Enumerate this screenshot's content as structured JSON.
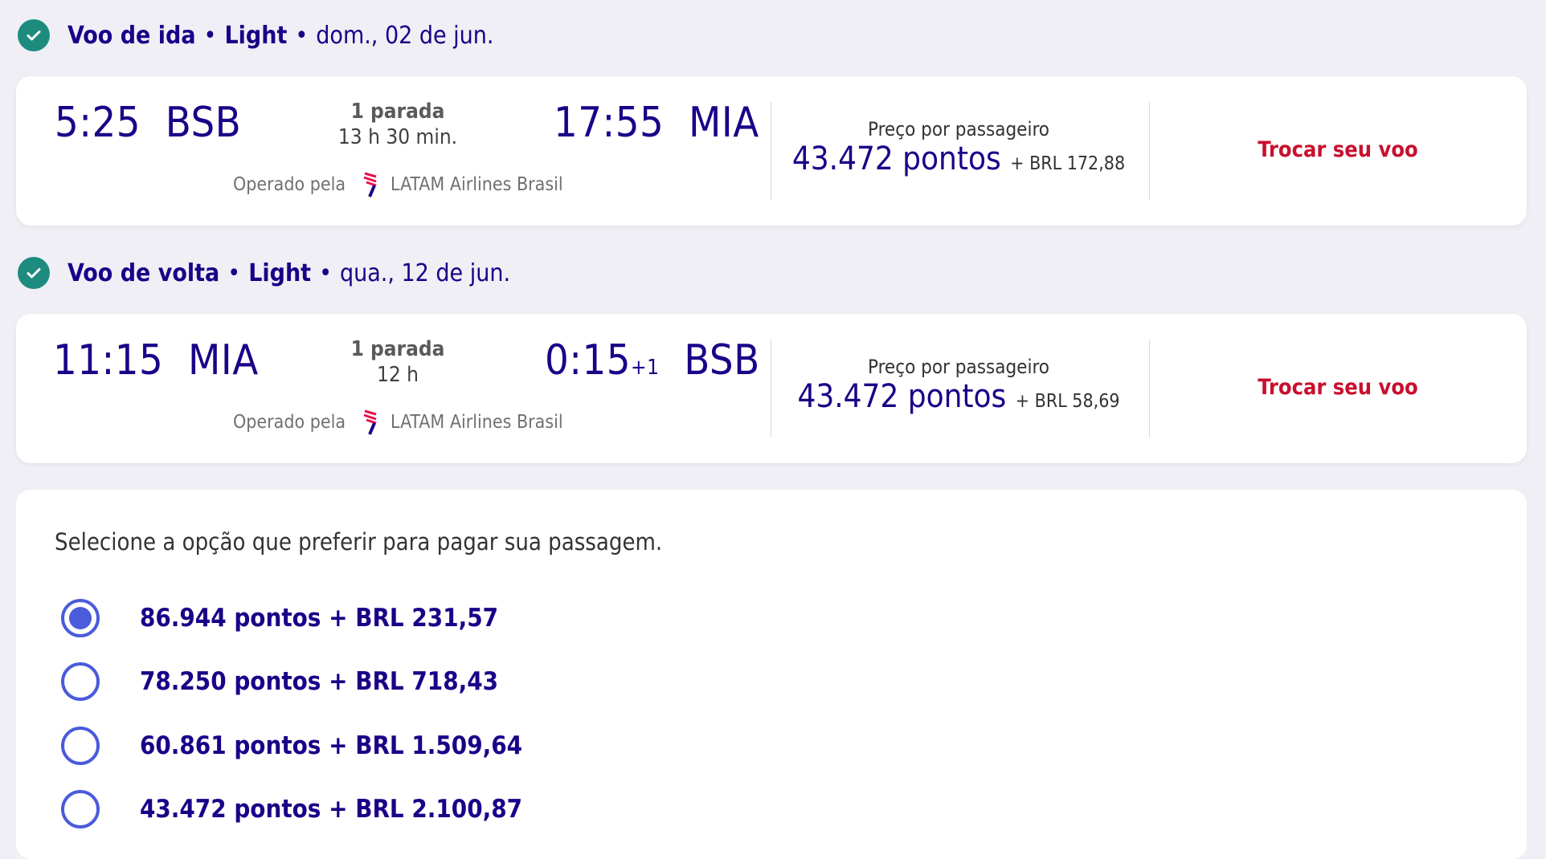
{
  "colors": {
    "navy": "#1b0088",
    "accent_red": "#c8102e",
    "check_green": "#1d8c7f",
    "radio_blue": "#4a5bdb",
    "background": "#efeff5"
  },
  "outbound": {
    "icon": "check-circle-icon",
    "title": "Voo de ida",
    "fare": "Light",
    "date": "dom., 02 de jun.",
    "dep_time": "5:25",
    "dep_airport": "BSB",
    "stops": "1 parada",
    "duration": "13 h 30 min.",
    "arr_time": "17:55",
    "arr_airport": "MIA",
    "arr_day_offset": "",
    "operated_label": "Operado pela",
    "airline_icon": "latam-logo-icon",
    "airline": "LATAM Airlines Brasil",
    "price_label": "Preço por passageiro",
    "price_points": "43.472 pontos",
    "price_extra": "+ BRL 172,88",
    "change_label": "Trocar seu voo"
  },
  "inbound": {
    "icon": "check-circle-icon",
    "title": "Voo de volta",
    "fare": "Light",
    "date": "qua., 12 de jun.",
    "dep_time": "11:15",
    "dep_airport": "MIA",
    "stops": "1 parada",
    "duration": "12 h",
    "arr_time": "0:15",
    "arr_airport": "BSB",
    "arr_day_offset": "+1",
    "operated_label": "Operado pela",
    "airline_icon": "latam-logo-icon",
    "airline": "LATAM Airlines Brasil",
    "price_label": "Preço por passageiro",
    "price_points": "43.472 pontos",
    "price_extra": "+ BRL 58,69",
    "change_label": "Trocar seu voo"
  },
  "payment": {
    "question": "Selecione a opção que preferir para pagar sua passagem.",
    "selected_index": 0,
    "options": [
      {
        "label": "86.944 pontos + BRL 231,57"
      },
      {
        "label": "78.250 pontos + BRL 718,43"
      },
      {
        "label": "60.861 pontos + BRL 1.509,64"
      },
      {
        "label": "43.472 pontos + BRL 2.100,87"
      }
    ]
  }
}
